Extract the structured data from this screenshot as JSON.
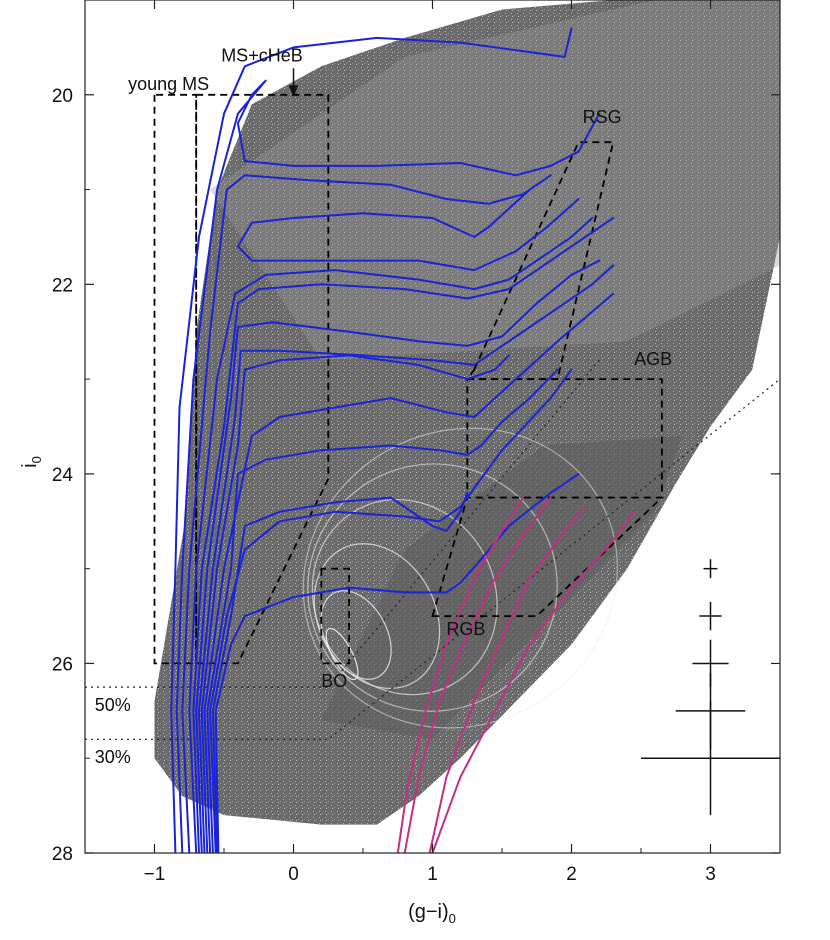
{
  "chart_data": {
    "type": "scatter",
    "title": "",
    "xlabel": "(g−i)",
    "xlabel_sub": "0",
    "ylabel": "i",
    "ylabel_sub": "0",
    "xlim": [
      -1.5,
      3.5
    ],
    "ylim": [
      28,
      19.0
    ],
    "y_inverted": true,
    "x_ticks": [
      -1,
      0,
      1,
      2,
      3
    ],
    "x_tick_labels": [
      "−1",
      "0",
      "1",
      "2",
      "3"
    ],
    "y_ticks": [
      20,
      22,
      24,
      26,
      28
    ],
    "y_tick_labels": [
      "20",
      "22",
      "24",
      "26",
      "28"
    ],
    "grid": false,
    "legend": "none",
    "colors": {
      "points": "#6e6e6e",
      "isochrone_young": "#1a23d6",
      "isochrone_old": "#c42d86",
      "contour": "#efefef",
      "box": "#000000"
    },
    "annotations": [
      {
        "text": "MS+cHeB",
        "x": -0.52,
        "y": 19.65
      },
      {
        "text": "young MS",
        "x": -1.19,
        "y": 19.95
      },
      {
        "text": "RSG",
        "x": 2.08,
        "y": 20.3
      },
      {
        "text": "AGB",
        "x": 2.45,
        "y": 22.85
      },
      {
        "text": "RGB",
        "x": 1.1,
        "y": 25.7
      },
      {
        "text": "BO",
        "x": 0.2,
        "y": 26.25
      },
      {
        "text": "50%",
        "x": -1.43,
        "y": 26.5
      },
      {
        "text": "30%",
        "x": -1.43,
        "y": 27.05
      }
    ],
    "completeness_limits": [
      {
        "label": "50%",
        "i0": 26.25
      },
      {
        "label": "30%",
        "i0": 26.8
      }
    ],
    "regions": [
      {
        "name": "young MS",
        "polygon": [
          [
            -1.0,
            20.0
          ],
          [
            -1.0,
            26.0
          ],
          [
            -0.7,
            26.0
          ],
          [
            -0.7,
            20.0
          ]
        ]
      },
      {
        "name": "MS+cHeB",
        "polygon": [
          [
            -0.7,
            20.0
          ],
          [
            0.25,
            20.0
          ],
          [
            0.25,
            24.05
          ],
          [
            -0.4,
            26.0
          ],
          [
            -0.7,
            26.0
          ]
        ]
      },
      {
        "name": "RSG",
        "polygon": [
          [
            1.3,
            22.9
          ],
          [
            2.05,
            20.5
          ],
          [
            2.3,
            20.5
          ],
          [
            1.9,
            23.0
          ],
          [
            1.25,
            23.0
          ]
        ]
      },
      {
        "name": "AGB",
        "polygon": [
          [
            1.25,
            23.0
          ],
          [
            2.65,
            23.0
          ],
          [
            2.65,
            24.25
          ],
          [
            1.25,
            24.25
          ]
        ]
      },
      {
        "name": "RGB",
        "polygon": [
          [
            1.0,
            25.5
          ],
          [
            1.25,
            24.25
          ],
          [
            2.65,
            24.25
          ],
          [
            1.75,
            25.5
          ]
        ]
      },
      {
        "name": "BO",
        "polygon": [
          [
            0.2,
            25.0
          ],
          [
            0.2,
            26.0
          ],
          [
            0.4,
            26.0
          ],
          [
            0.4,
            25.0
          ]
        ]
      }
    ],
    "error_bars": [
      {
        "x": 3.0,
        "y": 25.0,
        "xerr": 0.05,
        "yerr": 0.1
      },
      {
        "x": 3.0,
        "y": 25.5,
        "xerr": 0.08,
        "yerr": 0.15
      },
      {
        "x": 3.0,
        "y": 26.0,
        "xerr": 0.13,
        "yerr": 0.25
      },
      {
        "x": 3.0,
        "y": 26.5,
        "xerr": 0.25,
        "yerr": 0.4
      },
      {
        "x": 3.0,
        "y": 27.0,
        "xerr": 0.5,
        "yerr": 0.6
      }
    ],
    "series": [
      {
        "kind": "isochrone",
        "group": "young",
        "points": [
          [
            -0.85,
            28.0
          ],
          [
            -0.88,
            26.5
          ],
          [
            -0.85,
            25.0
          ],
          [
            -0.82,
            23.3
          ],
          [
            -0.68,
            21.5
          ],
          [
            -0.5,
            20.2
          ],
          [
            -0.35,
            19.7
          ],
          [
            0.0,
            19.5
          ],
          [
            0.6,
            19.4
          ],
          [
            1.2,
            19.45
          ],
          [
            1.7,
            19.55
          ],
          [
            1.95,
            19.6
          ],
          [
            2.0,
            19.3
          ]
        ]
      },
      {
        "kind": "isochrone",
        "group": "young",
        "points": [
          [
            -0.8,
            28.0
          ],
          [
            -0.84,
            26.5
          ],
          [
            -0.8,
            25.0
          ],
          [
            -0.72,
            23.0
          ],
          [
            -0.55,
            21.0
          ],
          [
            -0.4,
            20.2
          ],
          [
            -0.2,
            19.85
          ],
          [
            -0.3,
            20.0
          ],
          [
            -0.4,
            20.3
          ],
          [
            -0.35,
            20.7
          ],
          [
            0.0,
            20.75
          ],
          [
            0.6,
            20.75
          ],
          [
            1.2,
            20.72
          ],
          [
            1.6,
            20.85
          ],
          [
            1.85,
            20.75
          ],
          [
            2.05,
            20.6
          ],
          [
            2.2,
            20.2
          ]
        ]
      },
      {
        "kind": "isochrone",
        "group": "young",
        "points": [
          [
            -0.75,
            28.0
          ],
          [
            -0.8,
            26.5
          ],
          [
            -0.75,
            25.0
          ],
          [
            -0.6,
            22.5
          ],
          [
            -0.48,
            21.0
          ],
          [
            -0.35,
            20.85
          ],
          [
            0.1,
            20.9
          ],
          [
            0.7,
            20.95
          ],
          [
            1.1,
            21.1
          ],
          [
            1.4,
            21.15
          ],
          [
            1.65,
            21.05
          ],
          [
            1.85,
            20.85
          ],
          [
            1.7,
            21.0
          ],
          [
            1.4,
            21.4
          ],
          [
            1.3,
            21.5
          ],
          [
            1.0,
            21.3
          ],
          [
            0.5,
            21.25
          ],
          [
            0.0,
            21.3
          ],
          [
            -0.3,
            21.35
          ],
          [
            -0.4,
            21.6
          ],
          [
            -0.3,
            21.75
          ],
          [
            0.3,
            21.75
          ],
          [
            0.9,
            21.75
          ],
          [
            1.3,
            21.85
          ],
          [
            1.6,
            21.65
          ],
          [
            1.82,
            21.4
          ],
          [
            2.05,
            21.1
          ]
        ]
      },
      {
        "kind": "isochrone",
        "group": "young",
        "points": [
          [
            -0.7,
            28.0
          ],
          [
            -0.75,
            26.5
          ],
          [
            -0.7,
            25.0
          ],
          [
            -0.55,
            23.0
          ],
          [
            -0.42,
            22.1
          ],
          [
            -0.2,
            21.9
          ],
          [
            0.3,
            21.85
          ],
          [
            0.9,
            21.95
          ],
          [
            1.3,
            22.05
          ],
          [
            1.55,
            21.95
          ],
          [
            1.75,
            21.75
          ],
          [
            2.0,
            21.5
          ],
          [
            2.15,
            21.3
          ]
        ]
      },
      {
        "kind": "isochrone",
        "group": "young",
        "points": [
          [
            -0.68,
            28.0
          ],
          [
            -0.72,
            26.5
          ],
          [
            -0.66,
            25.0
          ],
          [
            -0.5,
            23.5
          ],
          [
            -0.4,
            22.2
          ],
          [
            -0.25,
            22.05
          ],
          [
            0.2,
            22.0
          ],
          [
            0.8,
            22.05
          ],
          [
            1.25,
            22.15
          ],
          [
            1.55,
            22.05
          ],
          [
            1.8,
            21.8
          ],
          [
            2.1,
            21.5
          ],
          [
            2.3,
            21.3
          ]
        ]
      },
      {
        "kind": "isochrone",
        "group": "young",
        "points": [
          [
            -0.66,
            28.0
          ],
          [
            -0.7,
            26.5
          ],
          [
            -0.62,
            25.0
          ],
          [
            -0.45,
            23.2
          ],
          [
            -0.4,
            22.45
          ],
          [
            -0.15,
            22.4
          ],
          [
            0.4,
            22.5
          ],
          [
            0.9,
            22.6
          ],
          [
            1.25,
            22.65
          ],
          [
            1.5,
            22.55
          ],
          [
            1.75,
            22.2
          ],
          [
            2.0,
            21.9
          ],
          [
            2.2,
            21.75
          ]
        ]
      },
      {
        "kind": "isochrone",
        "group": "young",
        "points": [
          [
            -0.64,
            28.0
          ],
          [
            -0.68,
            26.5
          ],
          [
            -0.58,
            25.0
          ],
          [
            -0.42,
            23.4
          ],
          [
            -0.38,
            22.7
          ],
          [
            -0.1,
            22.7
          ],
          [
            0.5,
            22.75
          ],
          [
            1.0,
            22.8
          ],
          [
            1.3,
            22.85
          ],
          [
            1.6,
            22.55
          ],
          [
            1.85,
            22.3
          ],
          [
            2.15,
            22.0
          ],
          [
            2.3,
            21.8
          ]
        ]
      },
      {
        "kind": "isochrone",
        "group": "young",
        "points": [
          [
            -0.62,
            28.0
          ],
          [
            -0.66,
            26.5
          ],
          [
            -0.55,
            25.0
          ],
          [
            -0.4,
            23.7
          ],
          [
            -0.35,
            22.9
          ],
          [
            -0.1,
            22.8
          ],
          [
            0.4,
            22.75
          ],
          [
            0.9,
            22.85
          ],
          [
            1.25,
            23.0
          ],
          [
            1.45,
            22.9
          ],
          [
            1.55,
            22.75
          ]
        ]
      },
      {
        "kind": "isochrone",
        "group": "young",
        "points": [
          [
            -0.6,
            28.0
          ],
          [
            -0.64,
            26.5
          ],
          [
            -0.5,
            25.0
          ],
          [
            -0.3,
            23.6
          ],
          [
            -0.1,
            23.4
          ],
          [
            0.3,
            23.3
          ],
          [
            0.7,
            23.2
          ],
          [
            1.1,
            23.35
          ],
          [
            1.3,
            23.4
          ],
          [
            1.6,
            23.0
          ],
          [
            1.9,
            22.6
          ],
          [
            2.1,
            22.35
          ],
          [
            2.3,
            22.1
          ]
        ]
      },
      {
        "kind": "isochrone",
        "group": "young",
        "points": [
          [
            -0.58,
            28.0
          ],
          [
            -0.62,
            26.5
          ],
          [
            -0.45,
            25.0
          ],
          [
            -0.4,
            24.0
          ],
          [
            -0.2,
            23.85
          ],
          [
            0.2,
            23.75
          ],
          [
            0.7,
            23.7
          ],
          [
            1.05,
            23.75
          ],
          [
            1.25,
            23.8
          ],
          [
            1.35,
            23.7
          ],
          [
            1.5,
            23.45
          ],
          [
            1.7,
            23.2
          ],
          [
            1.9,
            22.9
          ]
        ]
      },
      {
        "kind": "isochrone",
        "group": "young",
        "points": [
          [
            -0.56,
            28.0
          ],
          [
            -0.6,
            26.5
          ],
          [
            -0.48,
            25.5
          ],
          [
            -0.35,
            24.8
          ],
          [
            -0.1,
            24.5
          ],
          [
            0.3,
            24.4
          ],
          [
            0.8,
            24.45
          ],
          [
            1.05,
            24.5
          ],
          [
            1.2,
            24.35
          ],
          [
            1.3,
            24.15
          ],
          [
            1.5,
            23.75
          ],
          [
            1.85,
            23.2
          ],
          [
            2.0,
            22.9
          ]
        ]
      },
      {
        "kind": "isochrone",
        "group": "young",
        "points": [
          [
            -0.55,
            28.0
          ],
          [
            -0.58,
            26.5
          ],
          [
            -0.45,
            25.5
          ],
          [
            -0.35,
            24.55
          ],
          [
            -0.1,
            24.4
          ],
          [
            0.3,
            24.3
          ],
          [
            0.7,
            24.25
          ],
          [
            1.0,
            24.55
          ],
          [
            1.1,
            24.6
          ],
          [
            1.2,
            24.4
          ],
          [
            1.25,
            24.2
          ]
        ]
      },
      {
        "kind": "isochrone",
        "group": "young",
        "points": [
          [
            -0.54,
            28.0
          ],
          [
            -0.56,
            26.5
          ],
          [
            -0.45,
            25.8
          ],
          [
            -0.35,
            25.5
          ],
          [
            0.0,
            25.3
          ],
          [
            0.4,
            25.2
          ],
          [
            0.8,
            25.25
          ],
          [
            1.1,
            25.25
          ],
          [
            1.2,
            25.15
          ],
          [
            1.35,
            24.9
          ],
          [
            1.55,
            24.55
          ],
          [
            1.85,
            24.2
          ],
          [
            2.05,
            24.0
          ]
        ]
      },
      {
        "kind": "isochrone",
        "group": "old",
        "points": [
          [
            0.75,
            28.0
          ],
          [
            0.82,
            27.3
          ],
          [
            0.95,
            26.5
          ],
          [
            1.1,
            25.8
          ],
          [
            1.3,
            25.1
          ],
          [
            1.5,
            24.6
          ],
          [
            1.65,
            24.25
          ]
        ]
      },
      {
        "kind": "isochrone",
        "group": "old",
        "points": [
          [
            0.8,
            28.0
          ],
          [
            0.9,
            27.2
          ],
          [
            1.05,
            26.4
          ],
          [
            1.22,
            25.8
          ],
          [
            1.45,
            25.1
          ],
          [
            1.65,
            24.65
          ],
          [
            1.85,
            24.25
          ]
        ]
      },
      {
        "kind": "isochrone",
        "group": "old",
        "points": [
          [
            0.98,
            28.0
          ],
          [
            1.1,
            27.2
          ],
          [
            1.3,
            26.4
          ],
          [
            1.48,
            25.8
          ],
          [
            1.7,
            25.1
          ],
          [
            1.95,
            24.6
          ],
          [
            2.1,
            24.35
          ]
        ]
      },
      {
        "kind": "isochrone",
        "group": "old",
        "points": [
          [
            1.0,
            28.0
          ],
          [
            1.2,
            27.2
          ],
          [
            1.45,
            26.5
          ],
          [
            1.7,
            25.8
          ],
          [
            2.0,
            25.2
          ],
          [
            2.3,
            24.7
          ],
          [
            2.45,
            24.4
          ]
        ]
      }
    ]
  }
}
